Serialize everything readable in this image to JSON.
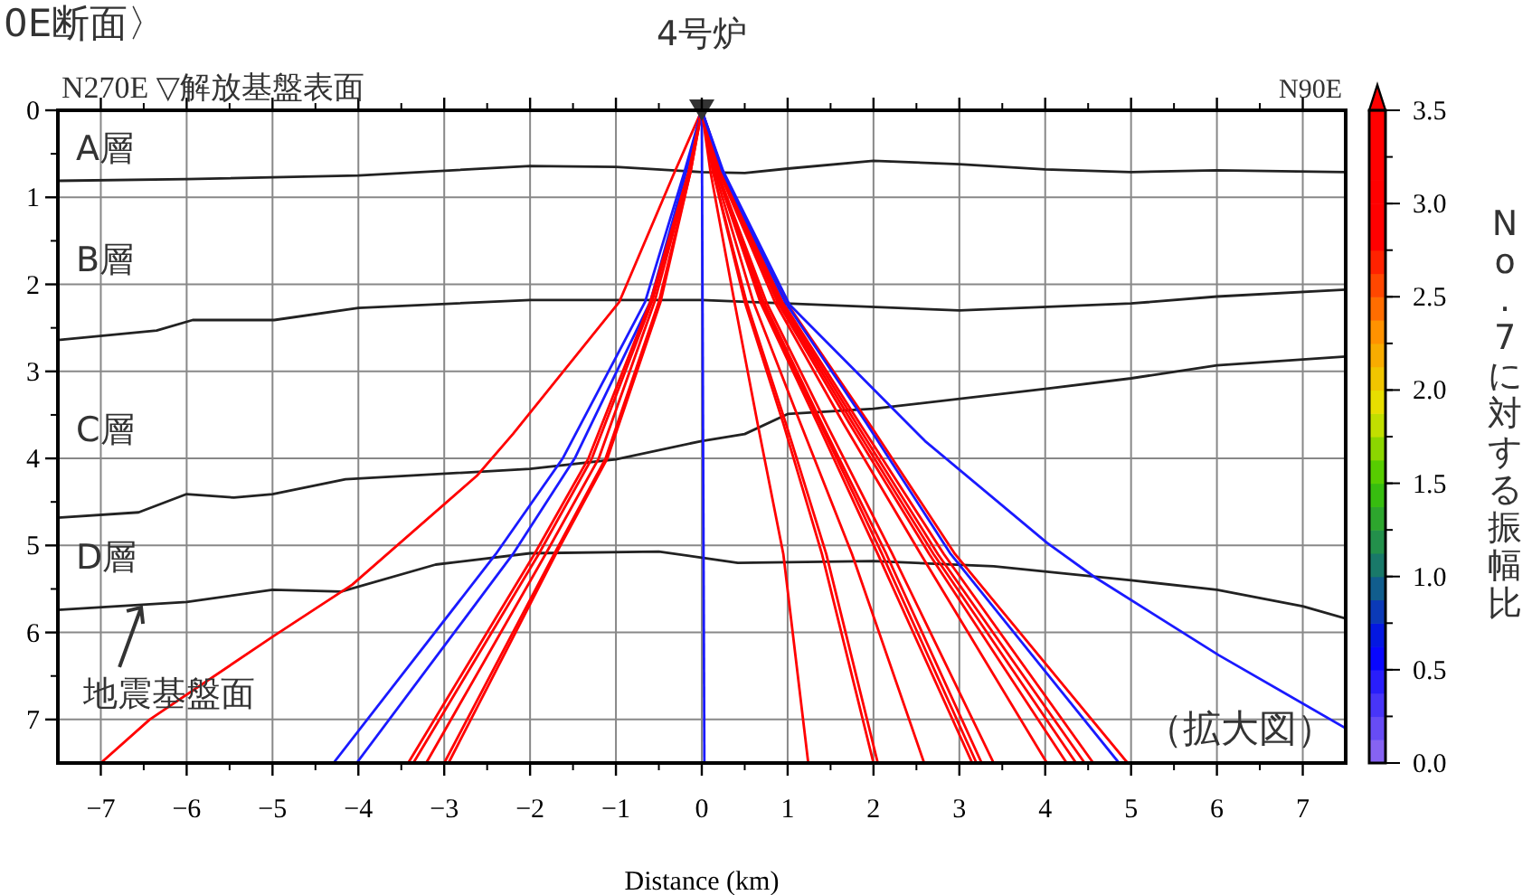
{
  "chart_data": {
    "type": "line",
    "title": "0E断面〉",
    "xlabel": "Distance (km)",
    "clabel": "No.7に対する振幅比",
    "xlim": [
      -7.5,
      7.5
    ],
    "xticks": [
      -7,
      -6,
      -5,
      -4,
      -3,
      -2,
      -1,
      0,
      1,
      2,
      3,
      4,
      5,
      6,
      7
    ],
    "ylim": [
      7.5,
      0
    ],
    "yticks": [
      0,
      1,
      2,
      3,
      4,
      5,
      6,
      7
    ],
    "grid": true,
    "clim": [
      0,
      3.5
    ],
    "cticks": [
      {
        "value": 0,
        "label": "0.0"
      },
      0.5,
      {
        "value": 1,
        "label": "1.0"
      },
      1.5,
      {
        "value": 2,
        "label": "2.0"
      },
      2.5,
      {
        "value": 3,
        "label": "3.0"
      },
      3.5
    ],
    "annotations": [
      {
        "text": "4号炉",
        "x": 0,
        "y": 0
      },
      "N270E ▽解放基盤表面",
      "N90E",
      "A層",
      "B層",
      "C層",
      "D層",
      {
        "text": "地震基盤面",
        "x": -6.53,
        "y": 5.65
      },
      "（拡大図）"
    ],
    "series": [
      {
        "type": "line",
        "color": "#222222",
        "x": [
          -7.5,
          -6,
          -4,
          -2,
          -1,
          0,
          0.5,
          1,
          2,
          3,
          4,
          5,
          6,
          7.5
        ],
        "values": [
          0.81,
          0.79,
          0.75,
          0.64,
          0.65,
          0.71,
          0.72,
          0.67,
          0.58,
          0.62,
          0.68,
          0.71,
          0.69,
          0.71
        ]
      },
      {
        "type": "line",
        "color": "#222222",
        "x": [
          -7.5,
          -6.35,
          -5.93,
          -4.98,
          -4,
          -2,
          0,
          3,
          5,
          6,
          7.5
        ],
        "values": [
          2.64,
          2.53,
          2.41,
          2.41,
          2.27,
          2.18,
          2.18,
          2.3,
          2.22,
          2.14,
          2.06
        ]
      },
      {
        "type": "line",
        "color": "#222222",
        "x": [
          -7.5,
          -6.56,
          -6,
          -5.45,
          -5,
          -4.15,
          -2,
          -1,
          0,
          0.5,
          1,
          2,
          4,
          5,
          6,
          7.5
        ],
        "values": [
          4.68,
          4.62,
          4.41,
          4.45,
          4.41,
          4.24,
          4.12,
          4.01,
          3.8,
          3.72,
          3.49,
          3.43,
          3.2,
          3.08,
          2.93,
          2.83
        ]
      },
      {
        "type": "line",
        "color": "#222222",
        "x": [
          -7.5,
          -6,
          -5,
          -4.2,
          -3.1,
          -2,
          -0.5,
          0,
          0.42,
          2,
          3.4,
          5,
          6,
          7,
          7.5
        ],
        "values": [
          5.74,
          5.65,
          5.51,
          5.53,
          5.22,
          5.09,
          5.07,
          5.14,
          5.2,
          5.18,
          5.24,
          5.4,
          5.51,
          5.7,
          5.84
        ]
      },
      {
        "type": "line",
        "color": "#ff0000",
        "x": [
          0,
          -0.33,
          -0.96,
          -2.2,
          -2.62,
          -4.07,
          -5.0,
          -6.43,
          -7.0
        ],
        "values": [
          0,
          0.74,
          2.2,
          3.72,
          4.2,
          5.45,
          6.05,
          7.0,
          7.5
        ]
      },
      {
        "type": "line",
        "color": "#1a1aff",
        "x": [
          0,
          -0.2,
          -0.66,
          -1.62,
          -2.4,
          -4.29
        ],
        "values": [
          0,
          0.7,
          2.2,
          4.0,
          5.1,
          7.5
        ]
      },
      {
        "type": "line",
        "color": "#1a1aff",
        "x": [
          0,
          -0.18,
          -0.6,
          -1.48,
          -2.2,
          -4.02
        ],
        "values": [
          0,
          0.7,
          2.2,
          4.0,
          5.1,
          7.5
        ]
      },
      {
        "type": "line",
        "color": "#ff0000",
        "x": [
          0,
          -0.15,
          -0.6,
          -1.32,
          -1.95,
          -3.42
        ],
        "values": [
          0,
          0.7,
          2.2,
          4.0,
          5.1,
          7.5
        ]
      },
      {
        "type": "line",
        "color": "#ff0000",
        "x": [
          0,
          -0.15,
          -0.58,
          -1.28,
          -1.9,
          -3.36
        ],
        "values": [
          0,
          0.7,
          2.2,
          4.0,
          5.1,
          7.5
        ]
      },
      {
        "type": "line",
        "color": "#ff0000",
        "x": [
          0,
          -0.14,
          -0.55,
          -1.2,
          -1.82,
          -3.21
        ],
        "values": [
          0,
          0.7,
          2.2,
          4.0,
          5.1,
          7.5
        ]
      },
      {
        "type": "line",
        "color": "#ff0000",
        "x": [
          0,
          -0.13,
          -0.5,
          -1.12,
          -1.72,
          -3.0
        ],
        "values": [
          0,
          0.7,
          2.2,
          4.0,
          5.1,
          7.5
        ]
      },
      {
        "type": "line",
        "color": "#ff0000",
        "x": [
          0,
          -0.13,
          -0.48,
          -1.1,
          -1.7,
          -2.95
        ],
        "values": [
          0,
          0.7,
          2.2,
          4.0,
          5.1,
          7.5
        ]
      },
      {
        "type": "line",
        "color": "#1a1aff",
        "x": [
          0,
          0.03
        ],
        "values": [
          0,
          7.5
        ]
      },
      {
        "type": "line",
        "color": "#ff0000",
        "x": [
          0,
          0.1,
          0.38,
          0.65,
          0.95,
          1.24
        ],
        "values": [
          0,
          0.7,
          2.2,
          3.6,
          5.1,
          7.5
        ]
      },
      {
        "type": "line",
        "color": "#ff0000",
        "x": [
          0,
          0.13,
          0.5,
          0.95,
          1.4,
          2.0
        ],
        "values": [
          0,
          0.7,
          2.2,
          3.6,
          5.1,
          7.5
        ]
      },
      {
        "type": "line",
        "color": "#ff0000",
        "x": [
          0,
          0.13,
          0.52,
          0.98,
          1.45,
          2.05
        ],
        "values": [
          0,
          0.7,
          2.2,
          3.6,
          5.1,
          7.5
        ]
      },
      {
        "type": "line",
        "color": "#ff0000",
        "x": [
          0,
          0.15,
          0.6,
          1.15,
          1.75,
          2.59
        ],
        "values": [
          0,
          0.7,
          2.2,
          3.6,
          5.1,
          7.5
        ]
      },
      {
        "type": "line",
        "color": "#ff0000",
        "x": [
          0,
          0.17,
          0.68,
          1.35,
          2.05,
          3.15
        ],
        "values": [
          0,
          0.7,
          2.2,
          3.6,
          5.1,
          7.5
        ]
      },
      {
        "type": "line",
        "color": "#ff0000",
        "x": [
          0,
          0.17,
          0.7,
          1.38,
          2.1,
          3.2
        ],
        "values": [
          0,
          0.7,
          2.2,
          3.6,
          5.1,
          7.5
        ]
      },
      {
        "type": "line",
        "color": "#ff0000",
        "x": [
          0,
          0.18,
          0.72,
          1.4,
          2.15,
          3.26
        ],
        "values": [
          0,
          0.7,
          2.2,
          3.6,
          5.1,
          7.5
        ]
      },
      {
        "type": "line",
        "color": "#ff0000",
        "x": [
          0,
          0.18,
          0.75,
          1.45,
          2.22,
          3.4
        ],
        "values": [
          0,
          0.7,
          2.2,
          3.6,
          5.1,
          7.5
        ]
      },
      {
        "type": "line",
        "color": "#ff0000",
        "x": [
          0,
          0.2,
          0.85,
          1.65,
          2.55,
          4.02
        ],
        "values": [
          0,
          0.7,
          2.2,
          3.6,
          5.1,
          7.5
        ]
      },
      {
        "type": "line",
        "color": "#ff0000",
        "x": [
          0,
          0.21,
          0.88,
          1.72,
          2.65,
          4.25
        ],
        "values": [
          0,
          0.7,
          2.2,
          3.6,
          5.1,
          7.5
        ]
      },
      {
        "type": "line",
        "color": "#ff0000",
        "x": [
          0,
          0.21,
          0.9,
          1.76,
          2.7,
          4.36
        ],
        "values": [
          0,
          0.7,
          2.2,
          3.6,
          5.1,
          7.5
        ]
      },
      {
        "type": "line",
        "color": "#ff0000",
        "x": [
          0,
          0.22,
          0.92,
          1.8,
          2.75,
          4.46
        ],
        "values": [
          0,
          0.7,
          2.2,
          3.6,
          5.1,
          7.5
        ]
      },
      {
        "type": "line",
        "color": "#ff0000",
        "x": [
          0,
          0.22,
          0.94,
          1.84,
          2.82,
          4.56
        ],
        "values": [
          0,
          0.7,
          2.2,
          3.6,
          5.1,
          7.5
        ]
      },
      {
        "type": "line",
        "color": "#ff0000",
        "x": [
          0,
          0.24,
          0.98,
          1.95,
          2.95,
          4.96
        ],
        "values": [
          0,
          0.7,
          2.2,
          3.6,
          5.1,
          7.5
        ]
      },
      {
        "type": "line",
        "color": "#1a1aff",
        "x": [
          0,
          0.24,
          0.97,
          1.92,
          2.9,
          4.86
        ],
        "values": [
          0,
          0.7,
          2.2,
          3.6,
          5.1,
          7.5
        ]
      },
      {
        "type": "line",
        "color": "#1a1aff",
        "x": [
          0,
          0.25,
          1.02,
          2.6,
          4.02,
          4.57,
          6.02,
          7.5
        ],
        "values": [
          0,
          0.7,
          2.23,
          3.8,
          4.97,
          5.36,
          6.26,
          7.1
        ]
      },
      {
        "type": "scatter",
        "color": "#333333",
        "marker": "triangle",
        "x": [
          0
        ],
        "values": [
          0
        ]
      }
    ]
  }
}
